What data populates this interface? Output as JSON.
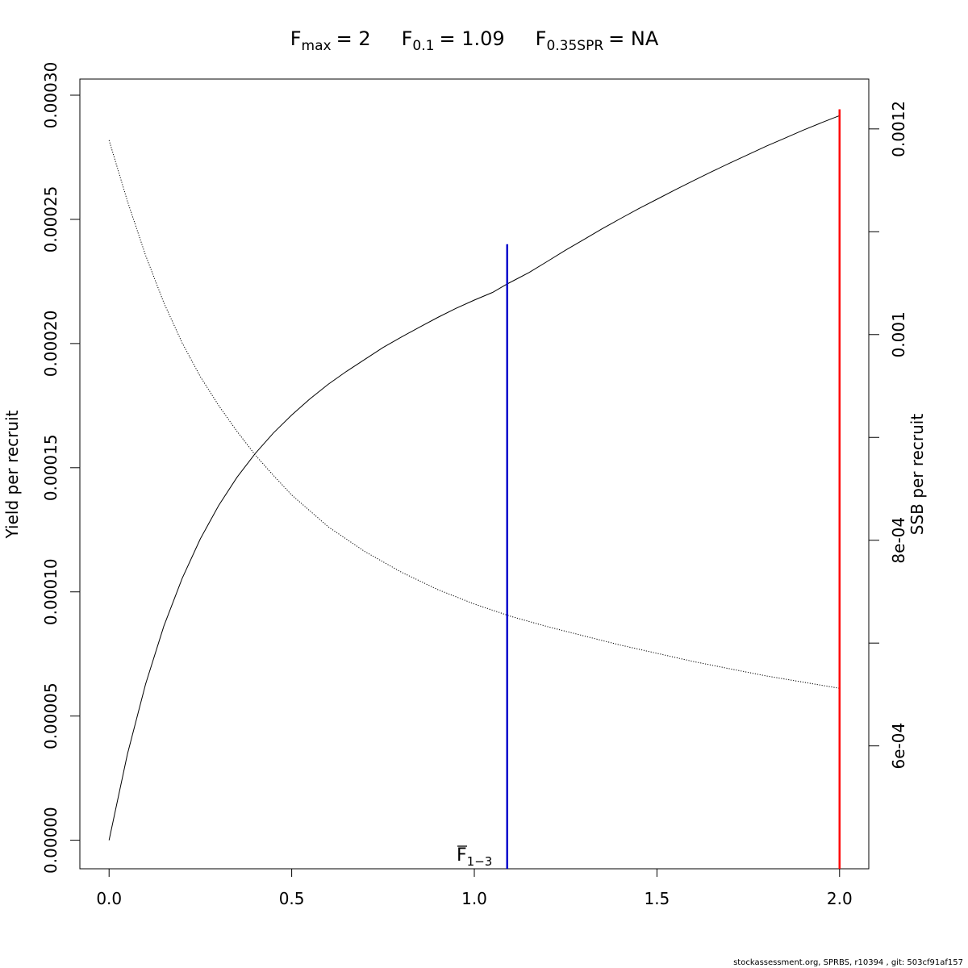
{
  "chart_data": {
    "type": "line",
    "title_parts": [
      {
        "main": "F",
        "sub": "max",
        "value": "= 2"
      },
      {
        "main": "F",
        "sub": "0.1",
        "value": "= 1.09"
      },
      {
        "main": "F",
        "sub": "0.35SPR",
        "value": "= NA"
      }
    ],
    "xlabel": {
      "main": "F",
      "sub": "1−3"
    },
    "ylabel_left": "Yield per recruit",
    "ylabel_right": "SSB per recruit",
    "xlim": [
      -0.08,
      2.08
    ],
    "ylim_left": [
      -1.15e-05,
      0.0003065
    ],
    "ylim_right": [
      0.0004805,
      0.0012485
    ],
    "x_ticks": [
      {
        "value": 0.0,
        "label": "0.0"
      },
      {
        "value": 0.5,
        "label": "0.5"
      },
      {
        "value": 1.0,
        "label": "1.0"
      },
      {
        "value": 1.5,
        "label": "1.5"
      },
      {
        "value": 2.0,
        "label": "2.0"
      }
    ],
    "y_left_ticks": [
      {
        "value": 0.0,
        "label": "0.00000"
      },
      {
        "value": 5e-05,
        "label": "0.00005"
      },
      {
        "value": 0.0001,
        "label": "0.00010"
      },
      {
        "value": 0.00015,
        "label": "0.00015"
      },
      {
        "value": 0.0002,
        "label": "0.00020"
      },
      {
        "value": 0.00025,
        "label": "0.00025"
      },
      {
        "value": 0.0003,
        "label": "0.00030"
      }
    ],
    "y_right_ticks": [
      {
        "value": 0.0006,
        "label": "6e-04"
      },
      {
        "value": 0.0007,
        "label": ""
      },
      {
        "value": 0.0008,
        "label": "8e-04"
      },
      {
        "value": 0.0009,
        "label": ""
      },
      {
        "value": 0.001,
        "label": "0.001"
      },
      {
        "value": 0.0011,
        "label": ""
      },
      {
        "value": 0.0012,
        "label": "0.0012"
      }
    ],
    "series": [
      {
        "axis": "left",
        "style": "solid",
        "color": "#000000",
        "x": [
          0.0,
          0.05,
          0.1,
          0.15,
          0.2,
          0.25,
          0.3,
          0.35,
          0.4,
          0.45,
          0.5,
          0.55,
          0.6,
          0.65,
          0.7,
          0.75,
          0.8,
          0.85,
          0.9,
          0.95,
          1.0,
          1.05,
          1.09,
          1.15,
          1.2,
          1.25,
          1.3,
          1.35,
          1.4,
          1.45,
          1.5,
          1.55,
          1.6,
          1.65,
          1.7,
          1.75,
          1.8,
          1.85,
          1.9,
          1.95,
          2.0
        ],
        "y": [
          0.0,
          3.46e-05,
          6.29e-05,
          8.62e-05,
          0.0001054,
          0.0001214,
          0.0001348,
          0.0001461,
          0.0001557,
          0.000164,
          0.0001712,
          0.0001777,
          0.0001836,
          0.0001888,
          0.0001936,
          0.0001984,
          0.0002026,
          0.0002066,
          0.0002105,
          0.0002142,
          0.0002175,
          0.0002206,
          0.000224,
          0.0002286,
          0.0002331,
          0.0002376,
          0.0002419,
          0.0002462,
          0.0002503,
          0.0002543,
          0.0002581,
          0.0002619,
          0.0002656,
          0.0002692,
          0.0002727,
          0.0002761,
          0.0002795,
          0.0002827,
          0.0002859,
          0.0002889,
          0.0002918
        ]
      },
      {
        "axis": "right",
        "style": "dotted",
        "color": "#000000",
        "x": [
          0.0,
          0.05,
          0.1,
          0.15,
          0.2,
          0.25,
          0.3,
          0.35,
          0.4,
          0.45,
          0.5,
          0.6,
          0.7,
          0.8,
          0.9,
          1.0,
          1.1,
          1.2,
          1.3,
          1.4,
          1.5,
          1.6,
          1.7,
          1.8,
          1.9,
          2.0
        ],
        "y": [
          0.001189,
          0.00113,
          0.001077,
          0.001031,
          0.000992,
          0.000959,
          0.000931,
          0.000906,
          0.000883,
          0.000863,
          0.000844,
          0.000813,
          0.000789,
          0.000769,
          0.000752,
          0.000738,
          0.000726,
          0.000716,
          0.000707,
          0.000698,
          0.00069,
          0.000682,
          0.000675,
          0.000668,
          0.000662,
          0.000656
        ]
      }
    ],
    "reference_lines": [
      {
        "x": 1.09,
        "y_top": 0.00024,
        "color": "#0000cc"
      },
      {
        "x": 2.0,
        "y_top": 0.0002943,
        "color": "#ff0000"
      }
    ],
    "footer": "stockassessment.org, SPRBS, r10394 , git: 503cf91af157",
    "grid": false,
    "legend": "none"
  }
}
